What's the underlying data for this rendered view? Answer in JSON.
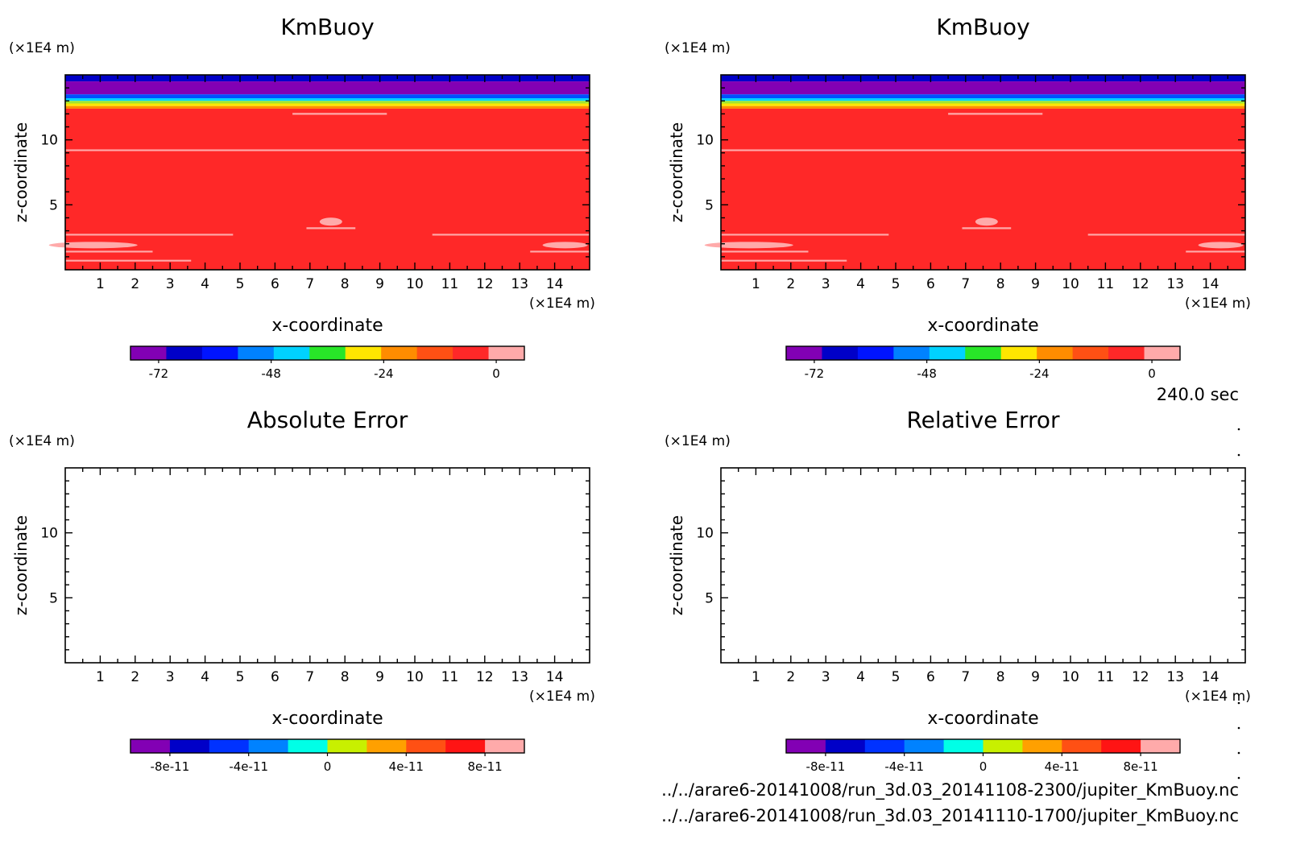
{
  "time_label": "240.0 sec",
  "files": [
    "../../arare6-20141008/run_3d.03_20141108-2300/jupiter_KmBuoy.nc",
    "../../arare6-20141008/run_3d.03_20141110-1700/jupiter_KmBuoy.nc"
  ],
  "chart_data": [
    {
      "type": "heatmap",
      "title": "KmBuoy",
      "xlabel": "x-coordinate",
      "ylabel": "z-coordinate",
      "x_unit": "(x1E4 m)",
      "y_unit": "(x1E4 m)",
      "xlim": [
        0,
        15
      ],
      "ylim": [
        0,
        15
      ],
      "x_ticks": [
        1,
        2,
        3,
        4,
        5,
        6,
        7,
        8,
        9,
        10,
        11,
        12,
        13,
        14
      ],
      "y_ticks": [
        5,
        10
      ],
      "field_bands": [
        {
          "z0": 14.5,
          "z1": 15.0,
          "color": "#0000c8"
        },
        {
          "z0": 13.5,
          "z1": 14.5,
          "color": "#8200b4"
        },
        {
          "z0": 13.2,
          "z1": 13.5,
          "color": "#0050ff"
        },
        {
          "z0": 13.0,
          "z1": 13.2,
          "color": "#00d2ff"
        },
        {
          "z0": 12.8,
          "z1": 13.0,
          "color": "#a0e632"
        },
        {
          "z0": 12.6,
          "z1": 12.8,
          "color": "#ffe600"
        },
        {
          "z0": 12.4,
          "z1": 12.6,
          "color": "#ff8c00"
        },
        {
          "z0": 0.0,
          "z1": 12.4,
          "color": "#ff2828"
        }
      ],
      "colorbar": {
        "colors": [
          "#8200b4",
          "#0000c8",
          "#0014ff",
          "#0082ff",
          "#00d2ff",
          "#28e628",
          "#ffe600",
          "#ff8c00",
          "#ff5014",
          "#ff2828",
          "#ffaaaa"
        ],
        "tick_labels": [
          "-72",
          "-48",
          "-24",
          "0"
        ],
        "tick_values": [
          -72,
          -48,
          -24,
          0
        ],
        "range": [
          -78,
          6
        ]
      }
    },
    {
      "type": "heatmap",
      "title": "KmBuoy",
      "xlabel": "x-coordinate",
      "ylabel": "z-coordinate",
      "x_unit": "(x1E4 m)",
      "y_unit": "(x1E4 m)",
      "xlim": [
        0,
        15
      ],
      "ylim": [
        0,
        15
      ],
      "x_ticks": [
        1,
        2,
        3,
        4,
        5,
        6,
        7,
        8,
        9,
        10,
        11,
        12,
        13,
        14
      ],
      "y_ticks": [
        5,
        10
      ],
      "field_bands": [
        {
          "z0": 14.5,
          "z1": 15.0,
          "color": "#0000c8"
        },
        {
          "z0": 13.5,
          "z1": 14.5,
          "color": "#8200b4"
        },
        {
          "z0": 13.2,
          "z1": 13.5,
          "color": "#0050ff"
        },
        {
          "z0": 13.0,
          "z1": 13.2,
          "color": "#00d2ff"
        },
        {
          "z0": 12.8,
          "z1": 13.0,
          "color": "#a0e632"
        },
        {
          "z0": 12.6,
          "z1": 12.8,
          "color": "#ffe600"
        },
        {
          "z0": 12.4,
          "z1": 12.6,
          "color": "#ff8c00"
        },
        {
          "z0": 0.0,
          "z1": 12.4,
          "color": "#ff2828"
        }
      ],
      "colorbar": {
        "colors": [
          "#8200b4",
          "#0000c8",
          "#0014ff",
          "#0082ff",
          "#00d2ff",
          "#28e628",
          "#ffe600",
          "#ff8c00",
          "#ff5014",
          "#ff2828",
          "#ffaaaa"
        ],
        "tick_labels": [
          "-72",
          "-48",
          "-24",
          "0"
        ],
        "tick_values": [
          -72,
          -48,
          -24,
          0
        ],
        "range": [
          -78,
          6
        ]
      }
    },
    {
      "type": "heatmap",
      "title": "Absolute Error",
      "xlabel": "x-coordinate",
      "ylabel": "z-coordinate",
      "x_unit": "(x1E4 m)",
      "y_unit": "(x1E4 m)",
      "xlim": [
        0,
        15
      ],
      "ylim": [
        0,
        15
      ],
      "x_ticks": [
        1,
        2,
        3,
        4,
        5,
        6,
        7,
        8,
        9,
        10,
        11,
        12,
        13,
        14
      ],
      "y_ticks": [
        5,
        10
      ],
      "field_bands": [],
      "colorbar": {
        "colors": [
          "#8200b4",
          "#0000c8",
          "#0032ff",
          "#0082ff",
          "#00ffe6",
          "#c8f000",
          "#ffa000",
          "#ff5014",
          "#ff1414",
          "#ffaaaa"
        ],
        "tick_labels": [
          "-8e-11",
          "-4e-11",
          "0",
          "4e-11",
          "8e-11"
        ],
        "tick_values": [
          -8e-11,
          -4e-11,
          0,
          4e-11,
          8e-11
        ],
        "range": [
          -1e-10,
          1e-10
        ]
      }
    },
    {
      "type": "heatmap",
      "title": "Relative Error",
      "xlabel": "x-coordinate",
      "ylabel": "z-coordinate",
      "x_unit": "(x1E4 m)",
      "y_unit": "(x1E4 m)",
      "xlim": [
        0,
        15
      ],
      "ylim": [
        0,
        15
      ],
      "x_ticks": [
        1,
        2,
        3,
        4,
        5,
        6,
        7,
        8,
        9,
        10,
        11,
        12,
        13,
        14
      ],
      "y_ticks": [
        5,
        10
      ],
      "field_bands": [],
      "colorbar": {
        "colors": [
          "#8200b4",
          "#0000c8",
          "#0032ff",
          "#0082ff",
          "#00ffe6",
          "#c8f000",
          "#ffa000",
          "#ff5014",
          "#ff1414",
          "#ffaaaa"
        ],
        "tick_labels": [
          "-8e-11",
          "-4e-11",
          "0",
          "4e-11",
          "8e-11"
        ],
        "tick_values": [
          -8e-11,
          -4e-11,
          0,
          4e-11,
          8e-11
        ],
        "range": [
          -1e-10,
          1e-10
        ]
      }
    }
  ]
}
